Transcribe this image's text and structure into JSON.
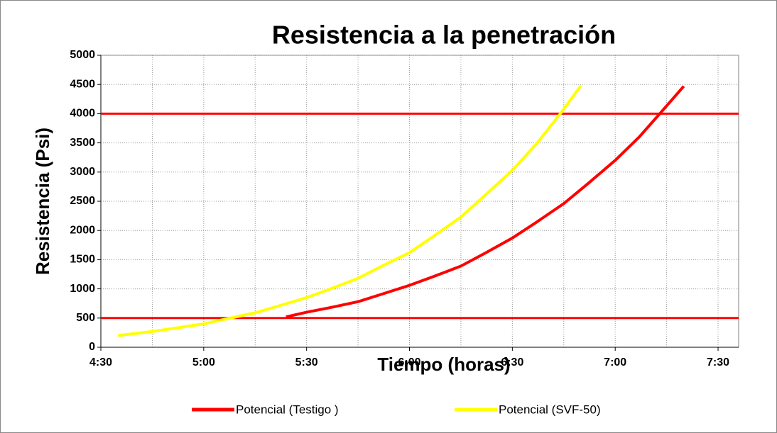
{
  "chart_data": {
    "type": "line",
    "title": "Resistencia a la penetración",
    "xlabel": "Tiempo (horas)",
    "ylabel": "Resistencia (Psi)",
    "xlim": [
      270,
      456
    ],
    "xticks": [
      {
        "value": 270,
        "label": "4:30"
      },
      {
        "value": 300,
        "label": "5:00"
      },
      {
        "value": 330,
        "label": "5:30"
      },
      {
        "value": 360,
        "label": "6:00"
      },
      {
        "value": 390,
        "label": "6:30"
      },
      {
        "value": 420,
        "label": "7:00"
      },
      {
        "value": 450,
        "label": "7:30"
      }
    ],
    "minor_xticks": [
      285,
      315,
      345,
      375,
      405,
      435
    ],
    "ylim": [
      0,
      5000
    ],
    "yticks": [
      0,
      500,
      1000,
      1500,
      2000,
      2500,
      3000,
      3500,
      4000,
      4500,
      5000
    ],
    "grid": true,
    "legend": "bottom",
    "reference_lines": {
      "color": "#ff0000",
      "values": [
        500,
        4000
      ]
    },
    "series": [
      {
        "name": "Potencial (Testigo )",
        "color": "#ff0000",
        "x": [
          324,
          330,
          337,
          345,
          352,
          360,
          367,
          375,
          382,
          390,
          397,
          405,
          412,
          420,
          427,
          433,
          440
        ],
        "values": [
          520,
          600,
          680,
          780,
          910,
          1060,
          1210,
          1390,
          1610,
          1870,
          2140,
          2460,
          2800,
          3200,
          3600,
          4000,
          4470
        ]
      },
      {
        "name": "Potencial (SVF-50)",
        "color": "#ffff00",
        "x": [
          275,
          285,
          292,
          300,
          307,
          315,
          322,
          330,
          337,
          345,
          352,
          360,
          367,
          375,
          382,
          390,
          397,
          404,
          410
        ],
        "values": [
          200,
          270,
          330,
          400,
          490,
          590,
          710,
          850,
          1000,
          1180,
          1390,
          1620,
          1900,
          2230,
          2600,
          3030,
          3480,
          4000,
          4480
        ]
      }
    ]
  }
}
